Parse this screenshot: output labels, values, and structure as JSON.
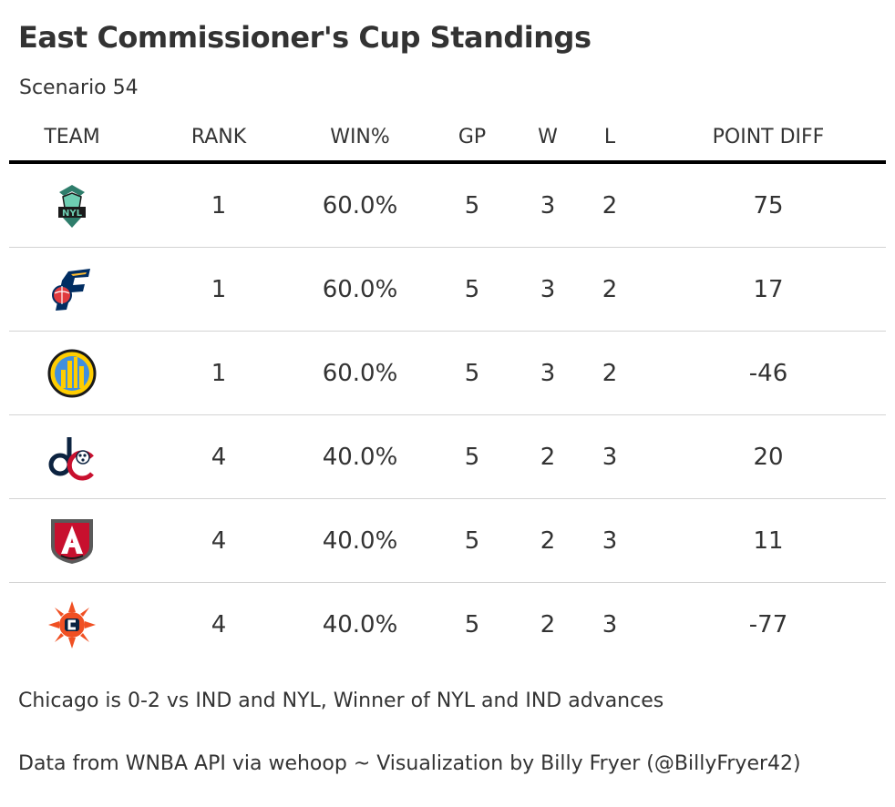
{
  "title": "East Commissioner's Cup Standings",
  "subtitle": "Scenario 54",
  "columns": {
    "team": "TEAM",
    "rank": "RANK",
    "win_pct": "WIN%",
    "gp": "GP",
    "w": "W",
    "l": "L",
    "point_diff": "POINT DIFF"
  },
  "rows": [
    {
      "logo": "new-york-liberty-logo",
      "rank": "1",
      "win_pct": "60.0%",
      "gp": "5",
      "w": "3",
      "l": "2",
      "point_diff": "75"
    },
    {
      "logo": "indiana-fever-logo",
      "rank": "1",
      "win_pct": "60.0%",
      "gp": "5",
      "w": "3",
      "l": "2",
      "point_diff": "17"
    },
    {
      "logo": "chicago-sky-logo",
      "rank": "1",
      "win_pct": "60.0%",
      "gp": "5",
      "w": "3",
      "l": "2",
      "point_diff": "-46"
    },
    {
      "logo": "washington-mystics-logo",
      "rank": "4",
      "win_pct": "40.0%",
      "gp": "5",
      "w": "2",
      "l": "3",
      "point_diff": "20"
    },
    {
      "logo": "atlanta-dream-logo",
      "rank": "4",
      "win_pct": "40.0%",
      "gp": "5",
      "w": "2",
      "l": "3",
      "point_diff": "11"
    },
    {
      "logo": "connecticut-sun-logo",
      "rank": "4",
      "win_pct": "40.0%",
      "gp": "5",
      "w": "2",
      "l": "3",
      "point_diff": "-77"
    }
  ],
  "footnote": "Chicago is 0-2 vs IND and NYL, Winner of NYL and IND advances",
  "source": "Data from WNBA API via wehoop ~ Visualization by Billy Fryer (@BillyFryer42)",
  "colors": {
    "text": "#333333",
    "header_rule": "#000000",
    "row_divider": "#d3d3d3",
    "liberty_teal": "#6ECEB2",
    "fever_navy": "#002D62",
    "fever_red": "#E03A3E",
    "fever_gold": "#FDBB30",
    "sky_blue": "#418FDE",
    "sky_yellow": "#FFCD00",
    "mystics_navy": "#0C2340",
    "mystics_red": "#C8102E",
    "dream_red": "#C8102E",
    "dream_gray": "#5A5A5A",
    "sun_orange": "#F05023",
    "sun_navy": "#0A2240"
  }
}
